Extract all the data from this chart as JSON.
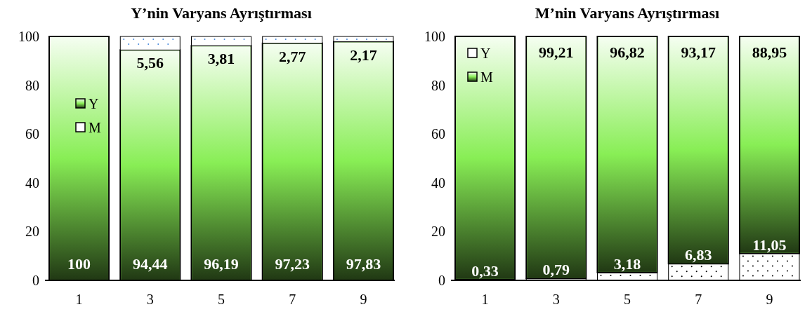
{
  "chart_data": [
    {
      "type": "bar",
      "title": "Y’nin Varyans Ayrıştırması",
      "categories": [
        "1",
        "3",
        "5",
        "7",
        "9"
      ],
      "stacked": true,
      "ylim": [
        0,
        100
      ],
      "yticks": [
        0,
        20,
        40,
        60,
        80,
        100
      ],
      "grid": false,
      "legend": "top left",
      "series": [
        {
          "name": "Y",
          "color": "#88ee55",
          "values": [
            100,
            94.44,
            96.19,
            97.23,
            97.83
          ],
          "value_labels": [
            "100",
            "94,44",
            "96,19",
            "97,23",
            "97,83"
          ]
        },
        {
          "name": "M",
          "color": "#ffffff",
          "values": [
            0,
            5.56,
            3.81,
            2.77,
            2.17
          ],
          "value_labels": [
            null,
            "5,56",
            "3,81",
            "2,77",
            "2,17"
          ]
        }
      ]
    },
    {
      "type": "bar",
      "title": "M’nin Varyans Ayrıştırması",
      "categories": [
        "1",
        "3",
        "5",
        "7",
        "9"
      ],
      "stacked": true,
      "ylim": [
        0,
        100
      ],
      "yticks": [
        0,
        20,
        40,
        60,
        80,
        100
      ],
      "grid": false,
      "legend": "top left",
      "series": [
        {
          "name": "Y",
          "color": "#ffffff",
          "values": [
            0.33,
            0.79,
            3.18,
            6.83,
            11.05
          ],
          "value_labels": [
            "0,33",
            "0,79",
            "3,18",
            "6,83",
            "11,05"
          ]
        },
        {
          "name": "M",
          "color": "#88ee55",
          "values": [
            99.7,
            99.21,
            96.82,
            93.17,
            88.95
          ],
          "value_labels": [
            null,
            "99,21",
            "96,82",
            "93,17",
            "88,95"
          ]
        }
      ]
    }
  ]
}
